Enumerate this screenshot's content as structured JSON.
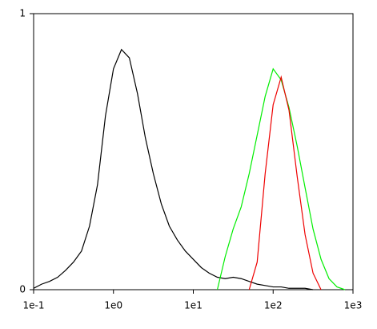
{
  "chart_data": {
    "type": "line",
    "x": [
      0.1,
      0.126,
      0.158,
      0.2,
      0.251,
      0.316,
      0.398,
      0.501,
      0.631,
      0.794,
      1,
      1.26,
      1.58,
      2,
      2.51,
      3.16,
      3.98,
      5.01,
      6.31,
      7.94,
      10,
      12.6,
      15.8,
      20,
      25.1,
      31.6,
      39.8,
      50.1,
      63.1,
      79.4,
      100,
      126,
      158,
      200,
      251,
      316,
      398,
      501,
      631,
      794,
      1000
    ],
    "series": [
      {
        "color": "#000000",
        "values": [
          0.005,
          0.02,
          0.03,
          0.045,
          0.07,
          0.1,
          0.14,
          0.23,
          0.38,
          0.63,
          0.8,
          0.87,
          0.84,
          0.71,
          0.55,
          0.42,
          0.31,
          0.23,
          0.18,
          0.14,
          0.11,
          0.08,
          0.06,
          0.045,
          0.04,
          0.045,
          0.04,
          0.03,
          0.02,
          0.015,
          0.01,
          0.01,
          0.005,
          0.005,
          0.005,
          0,
          null,
          null,
          null,
          null,
          null
        ]
      },
      {
        "color": "#00ee00",
        "values": [
          null,
          null,
          null,
          null,
          null,
          null,
          null,
          null,
          null,
          null,
          null,
          null,
          null,
          null,
          null,
          null,
          null,
          null,
          null,
          null,
          null,
          null,
          null,
          0,
          0.12,
          0.22,
          0.3,
          0.42,
          0.56,
          0.7,
          0.8,
          0.76,
          0.66,
          0.52,
          0.37,
          0.22,
          0.11,
          0.04,
          0.01,
          0,
          null
        ]
      },
      {
        "color": "#ee0000",
        "values": [
          null,
          null,
          null,
          null,
          null,
          null,
          null,
          null,
          null,
          null,
          null,
          null,
          null,
          null,
          null,
          null,
          null,
          null,
          null,
          null,
          null,
          null,
          null,
          null,
          null,
          null,
          null,
          0,
          0.1,
          0.42,
          0.67,
          0.77,
          0.65,
          0.41,
          0.2,
          0.06,
          0,
          null,
          null,
          null,
          null
        ]
      }
    ],
    "xlim": [
      0.1,
      1000
    ],
    "xscale": "log",
    "xticks": [
      {
        "value": 0.1,
        "label": "1e-1"
      },
      {
        "value": 1,
        "label": "1e0"
      },
      {
        "value": 10,
        "label": "1e1"
      },
      {
        "value": 100,
        "label": "1e2"
      },
      {
        "value": 1000,
        "label": "1e3"
      }
    ],
    "ylim": [
      0,
      1
    ],
    "yticks": [
      0,
      1
    ]
  }
}
